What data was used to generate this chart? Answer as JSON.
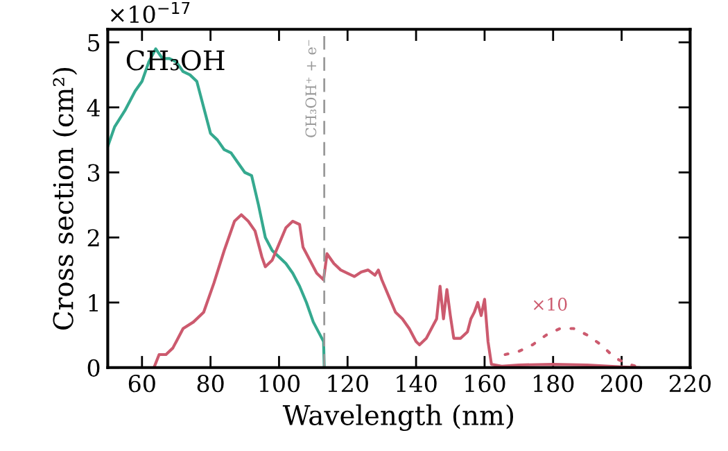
{
  "chart_data": {
    "type": "line",
    "xlabel": "Wavelength (nm)",
    "ylabel": "Cross section (cm²)",
    "xlim": [
      50,
      220
    ],
    "xticks": [
      60,
      80,
      100,
      120,
      140,
      160,
      180,
      200,
      220
    ],
    "ylim": [
      0,
      5.2
    ],
    "yticks": [
      0,
      1,
      2,
      3,
      4,
      5
    ],
    "grid": false,
    "legend": false,
    "annotations": [
      "×10$^{−17}$",
      "CH₃OH",
      "×10"
    ],
    "ref_lines": [
      {
        "axis": "x",
        "value": 113.2,
        "label": "CH₃OH⁺ + e⁻",
        "color": "#999999",
        "line_style": "dashed"
      }
    ],
    "series": [
      {
        "color": "#35a98f",
        "line_style": "solid",
        "x": [
          50,
          52,
          55,
          58,
          60,
          62,
          64,
          66,
          68,
          70,
          72,
          74,
          76,
          78,
          80,
          82,
          84,
          86,
          88,
          90,
          92,
          94,
          96,
          98,
          100,
          102,
          104,
          106,
          108,
          110,
          112,
          113,
          113.2
        ],
        "values": [
          3.4,
          3.7,
          3.95,
          4.25,
          4.4,
          4.7,
          4.9,
          4.75,
          4.75,
          4.7,
          4.55,
          4.5,
          4.4,
          4.0,
          3.6,
          3.5,
          3.35,
          3.3,
          3.15,
          3.0,
          2.95,
          2.5,
          2.0,
          1.8,
          1.7,
          1.6,
          1.45,
          1.25,
          1.0,
          0.7,
          0.5,
          0.4,
          0
        ]
      },
      {
        "color": "#cc5a6e",
        "line_style": "solid",
        "x": [
          63.5,
          65,
          67,
          69,
          72,
          75,
          78,
          81,
          84,
          87,
          89,
          91,
          93,
          95,
          96,
          98,
          100,
          102,
          104,
          106,
          107,
          109,
          111,
          113,
          114,
          116,
          118,
          120,
          122,
          124,
          126,
          128,
          129,
          130,
          132,
          134,
          136,
          138,
          140,
          141,
          143,
          145,
          146,
          147,
          148,
          149,
          150,
          151,
          153,
          155,
          156,
          157,
          158,
          159,
          160,
          161,
          162,
          165,
          170,
          180,
          190,
          200,
          205
        ],
        "values": [
          0,
          0.2,
          0.2,
          0.3,
          0.6,
          0.7,
          0.85,
          1.3,
          1.8,
          2.25,
          2.35,
          2.25,
          2.1,
          1.7,
          1.55,
          1.65,
          1.9,
          2.15,
          2.25,
          2.2,
          1.85,
          1.65,
          1.45,
          1.35,
          1.75,
          1.6,
          1.5,
          1.45,
          1.4,
          1.47,
          1.5,
          1.42,
          1.5,
          1.35,
          1.1,
          0.85,
          0.75,
          0.6,
          0.4,
          0.35,
          0.45,
          0.65,
          0.75,
          1.25,
          0.75,
          1.2,
          0.8,
          0.45,
          0.45,
          0.55,
          0.75,
          0.85,
          1.0,
          0.8,
          1.05,
          0.4,
          0.05,
          0.02,
          0.04,
          0.05,
          0.04,
          0.01,
          0
        ]
      },
      {
        "color": "#cc5a6e",
        "line_style": "dotted",
        "x": [
          166,
          170,
          174,
          178,
          182,
          186,
          190,
          194,
          198,
          202,
          206
        ],
        "values": [
          0.2,
          0.25,
          0.35,
          0.5,
          0.6,
          0.6,
          0.5,
          0.35,
          0.15,
          0.05,
          0.0
        ]
      }
    ]
  }
}
